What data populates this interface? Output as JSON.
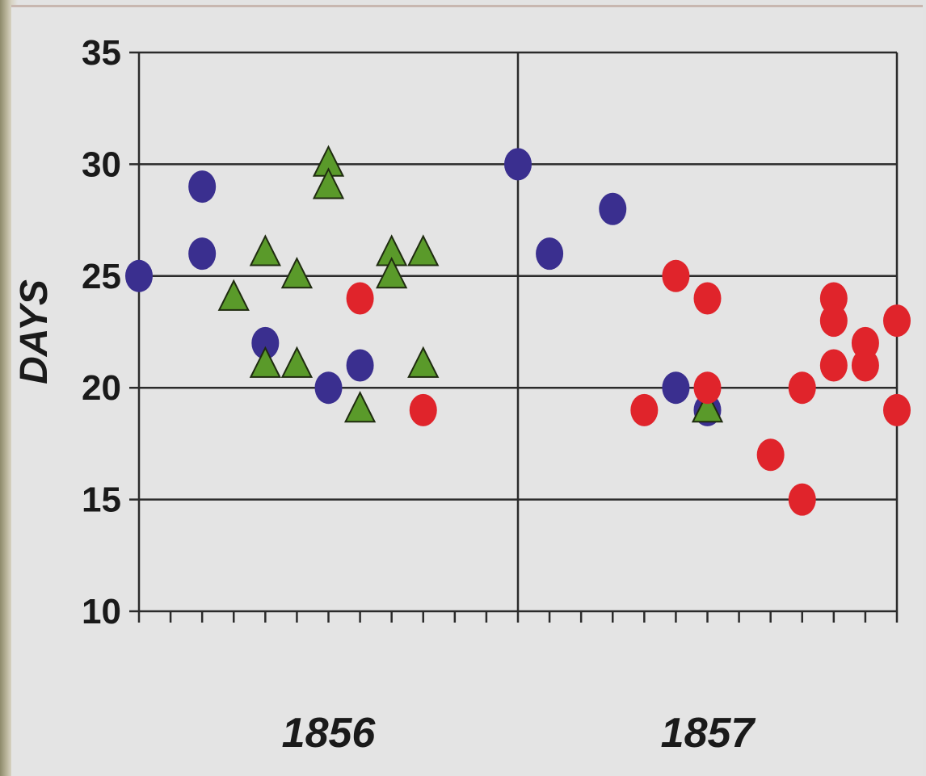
{
  "chart_data": {
    "type": "scatter",
    "title": "",
    "ylabel": "DAYS",
    "xlabel": "",
    "ylim": [
      10,
      35
    ],
    "yticks": [
      "10",
      "15",
      "20",
      "25",
      "30",
      "35"
    ],
    "year_labels": [
      "1856",
      "1857"
    ],
    "grid": true,
    "legend": "none",
    "series": [
      {
        "marker": "circle",
        "color": "#3a2f8f",
        "points": [
          {
            "x": 0,
            "y": 25
          },
          {
            "x": 2,
            "y": 29
          },
          {
            "x": 2,
            "y": 26
          },
          {
            "x": 4,
            "y": 22
          },
          {
            "x": 6,
            "y": 20
          },
          {
            "x": 7,
            "y": 21
          },
          {
            "x": 12,
            "y": 30
          },
          {
            "x": 13,
            "y": 26
          },
          {
            "x": 15,
            "y": 28
          },
          {
            "x": 17,
            "y": 20
          },
          {
            "x": 18,
            "y": 19
          }
        ]
      },
      {
        "marker": "triangle",
        "color": "#5a9a2a",
        "points": [
          {
            "x": 3,
            "y": 24
          },
          {
            "x": 4,
            "y": 26
          },
          {
            "x": 4,
            "y": 21
          },
          {
            "x": 5,
            "y": 25
          },
          {
            "x": 5,
            "y": 21
          },
          {
            "x": 6,
            "y": 30
          },
          {
            "x": 6,
            "y": 29
          },
          {
            "x": 7,
            "y": 19
          },
          {
            "x": 8,
            "y": 26
          },
          {
            "x": 8,
            "y": 25
          },
          {
            "x": 9,
            "y": 26
          },
          {
            "x": 9,
            "y": 21
          },
          {
            "x": 18,
            "y": 19
          }
        ]
      },
      {
        "marker": "circle",
        "color": "#e0242b",
        "points": [
          {
            "x": 7,
            "y": 24
          },
          {
            "x": 9,
            "y": 19
          },
          {
            "x": 16,
            "y": 19
          },
          {
            "x": 17,
            "y": 25
          },
          {
            "x": 18,
            "y": 24
          },
          {
            "x": 18,
            "y": 20
          },
          {
            "x": 20,
            "y": 17
          },
          {
            "x": 21,
            "y": 20
          },
          {
            "x": 21,
            "y": 15
          },
          {
            "x": 22,
            "y": 24
          },
          {
            "x": 22,
            "y": 23
          },
          {
            "x": 22,
            "y": 21
          },
          {
            "x": 23,
            "y": 22
          },
          {
            "x": 23,
            "y": 21
          },
          {
            "x": 24,
            "y": 23
          },
          {
            "x": 24,
            "y": 19
          }
        ]
      }
    ]
  }
}
